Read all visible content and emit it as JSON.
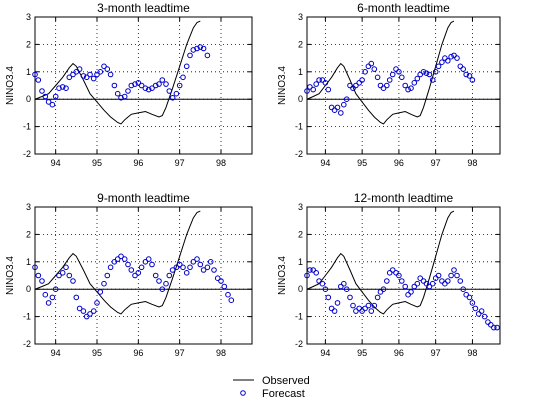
{
  "legend": {
    "observed": "Observed",
    "forecast": "Forecast"
  },
  "colors": {
    "observed": "#000000",
    "forecast": "#0000cc",
    "grid": "#000000",
    "axes": "#000000",
    "zero_line": "#000000"
  },
  "chart_data": [
    {
      "type": "line",
      "title": "3-month leadtime",
      "ylabel": "NINO3.4",
      "xlabel": "",
      "xlim": [
        1993.5,
        1998.75
      ],
      "ylim": [
        -2,
        3
      ],
      "xticks": [
        1994,
        1995,
        1996,
        1997,
        1998
      ],
      "xtick_labels": [
        "94",
        "95",
        "96",
        "97",
        "98"
      ],
      "yticks": [
        -2,
        -1,
        0,
        1,
        2,
        3
      ],
      "ytick_labels": [
        "-2",
        "-1",
        "0",
        "1",
        "2",
        "3"
      ],
      "grid": true,
      "zero_line": true,
      "series": [
        {
          "name": "Observed",
          "style": "line",
          "x": [
            1993.5,
            1993.67,
            1993.83,
            1994.0,
            1994.17,
            1994.33,
            1994.42,
            1994.5,
            1994.67,
            1994.83,
            1995.0,
            1995.17,
            1995.33,
            1995.5,
            1995.58,
            1995.67,
            1995.83,
            1996.0,
            1996.17,
            1996.33,
            1996.5,
            1996.58,
            1996.67,
            1996.83,
            1997.0,
            1997.17,
            1997.33,
            1997.42,
            1997.5
          ],
          "y": [
            0.0,
            0.1,
            0.2,
            0.5,
            0.8,
            1.15,
            1.3,
            1.2,
            0.7,
            0.2,
            -0.1,
            -0.4,
            -0.65,
            -0.85,
            -0.9,
            -0.75,
            -0.55,
            -0.5,
            -0.45,
            -0.55,
            -0.65,
            -0.6,
            -0.3,
            0.4,
            1.2,
            2.0,
            2.6,
            2.8,
            2.85
          ]
        },
        {
          "name": "Forecast",
          "style": "markers",
          "x": [
            1993.5,
            1993.58,
            1993.67,
            1993.75,
            1993.83,
            1993.92,
            1994.0,
            1994.08,
            1994.17,
            1994.25,
            1994.33,
            1994.42,
            1994.5,
            1994.58,
            1994.67,
            1994.75,
            1994.83,
            1994.92,
            1995.0,
            1995.08,
            1995.17,
            1995.25,
            1995.33,
            1995.42,
            1995.5,
            1995.58,
            1995.67,
            1995.75,
            1995.83,
            1995.92,
            1996.0,
            1996.08,
            1996.17,
            1996.25,
            1996.33,
            1996.42,
            1996.5,
            1996.58,
            1996.67,
            1996.75,
            1996.83,
            1996.92,
            1997.0,
            1997.08,
            1997.17,
            1997.25,
            1997.33,
            1997.42,
            1997.5,
            1997.58,
            1997.67
          ],
          "y": [
            0.9,
            0.7,
            0.3,
            0.1,
            -0.1,
            -0.2,
            0.1,
            0.4,
            0.45,
            0.4,
            0.8,
            0.9,
            1.0,
            1.1,
            0.85,
            0.8,
            0.9,
            0.75,
            0.9,
            1.0,
            1.2,
            1.1,
            0.9,
            0.5,
            0.2,
            0.05,
            0.1,
            0.3,
            0.5,
            0.55,
            0.6,
            0.5,
            0.4,
            0.35,
            0.4,
            0.5,
            0.55,
            0.7,
            0.55,
            0.3,
            0.05,
            0.2,
            0.5,
            0.8,
            1.2,
            1.6,
            1.8,
            1.85,
            1.9,
            1.85,
            1.6
          ]
        }
      ]
    },
    {
      "type": "line",
      "title": "6-month leadtime",
      "ylabel": "NINO3.4",
      "xlabel": "",
      "xlim": [
        1993.5,
        1998.75
      ],
      "ylim": [
        -2,
        3
      ],
      "xticks": [
        1994,
        1995,
        1996,
        1997,
        1998
      ],
      "xtick_labels": [
        "94",
        "95",
        "96",
        "97",
        "98"
      ],
      "yticks": [
        -2,
        -1,
        0,
        1,
        2,
        3
      ],
      "ytick_labels": [
        "-2",
        "-1",
        "0",
        "1",
        "2",
        "3"
      ],
      "grid": true,
      "zero_line": true,
      "series": [
        {
          "name": "Observed",
          "style": "line",
          "x": [
            1993.5,
            1993.67,
            1993.83,
            1994.0,
            1994.17,
            1994.33,
            1994.42,
            1994.5,
            1994.67,
            1994.83,
            1995.0,
            1995.17,
            1995.33,
            1995.5,
            1995.58,
            1995.67,
            1995.83,
            1996.0,
            1996.17,
            1996.33,
            1996.5,
            1996.58,
            1996.67,
            1996.83,
            1997.0,
            1997.17,
            1997.33,
            1997.42,
            1997.5
          ],
          "y": [
            0.0,
            0.1,
            0.2,
            0.5,
            0.8,
            1.15,
            1.3,
            1.2,
            0.7,
            0.2,
            -0.1,
            -0.4,
            -0.65,
            -0.85,
            -0.9,
            -0.75,
            -0.55,
            -0.5,
            -0.45,
            -0.55,
            -0.65,
            -0.6,
            -0.3,
            0.4,
            1.2,
            2.0,
            2.6,
            2.8,
            2.85
          ]
        },
        {
          "name": "Forecast",
          "style": "markers",
          "x": [
            1993.5,
            1993.58,
            1993.67,
            1993.75,
            1993.83,
            1993.92,
            1994.0,
            1994.08,
            1994.17,
            1994.25,
            1994.33,
            1994.42,
            1994.5,
            1994.58,
            1994.67,
            1994.75,
            1994.83,
            1994.92,
            1995.0,
            1995.08,
            1995.17,
            1995.25,
            1995.33,
            1995.42,
            1995.5,
            1995.58,
            1995.67,
            1995.75,
            1995.83,
            1995.92,
            1996.0,
            1996.08,
            1996.17,
            1996.25,
            1996.33,
            1996.42,
            1996.5,
            1996.58,
            1996.67,
            1996.75,
            1996.83,
            1996.92,
            1997.0,
            1997.08,
            1997.17,
            1997.25,
            1997.33,
            1997.42,
            1997.5,
            1997.58,
            1997.67,
            1997.75,
            1997.83,
            1997.92,
            1998.0
          ],
          "y": [
            0.3,
            0.45,
            0.35,
            0.55,
            0.7,
            0.7,
            0.6,
            0.35,
            -0.3,
            -0.4,
            -0.3,
            -0.5,
            -0.2,
            0.0,
            0.5,
            0.4,
            0.5,
            0.6,
            0.7,
            1.0,
            1.2,
            1.3,
            1.1,
            0.8,
            0.5,
            0.4,
            0.5,
            0.7,
            0.9,
            1.1,
            1.0,
            0.8,
            0.5,
            0.35,
            0.4,
            0.6,
            0.75,
            0.9,
            1.0,
            0.95,
            0.9,
            0.7,
            1.0,
            1.2,
            1.35,
            1.5,
            1.4,
            1.55,
            1.6,
            1.5,
            1.2,
            1.1,
            0.9,
            0.85,
            0.7
          ]
        }
      ]
    },
    {
      "type": "line",
      "title": "9-month leadtime",
      "ylabel": "NINO3.4",
      "xlabel": "",
      "xlim": [
        1993.5,
        1998.75
      ],
      "ylim": [
        -2,
        3
      ],
      "xticks": [
        1994,
        1995,
        1996,
        1997,
        1998
      ],
      "xtick_labels": [
        "94",
        "95",
        "96",
        "97",
        "98"
      ],
      "yticks": [
        -2,
        -1,
        0,
        1,
        2,
        3
      ],
      "ytick_labels": [
        "-2",
        "-1",
        "0",
        "1",
        "2",
        "3"
      ],
      "grid": true,
      "zero_line": true,
      "series": [
        {
          "name": "Observed",
          "style": "line",
          "x": [
            1993.5,
            1993.67,
            1993.83,
            1994.0,
            1994.17,
            1994.33,
            1994.42,
            1994.5,
            1994.67,
            1994.83,
            1995.0,
            1995.17,
            1995.33,
            1995.5,
            1995.58,
            1995.67,
            1995.83,
            1996.0,
            1996.17,
            1996.33,
            1996.5,
            1996.58,
            1996.67,
            1996.83,
            1997.0,
            1997.17,
            1997.33,
            1997.42,
            1997.5
          ],
          "y": [
            0.0,
            0.1,
            0.2,
            0.5,
            0.8,
            1.15,
            1.3,
            1.2,
            0.7,
            0.2,
            -0.1,
            -0.4,
            -0.65,
            -0.85,
            -0.9,
            -0.75,
            -0.55,
            -0.5,
            -0.45,
            -0.55,
            -0.65,
            -0.6,
            -0.3,
            0.4,
            1.2,
            2.0,
            2.6,
            2.8,
            2.85
          ]
        },
        {
          "name": "Forecast",
          "style": "markers",
          "x": [
            1993.5,
            1993.58,
            1993.67,
            1993.75,
            1993.83,
            1993.92,
            1994.0,
            1994.08,
            1994.17,
            1994.25,
            1994.33,
            1994.42,
            1994.5,
            1994.58,
            1994.67,
            1994.75,
            1994.83,
            1994.92,
            1995.0,
            1995.08,
            1995.17,
            1995.25,
            1995.33,
            1995.42,
            1995.5,
            1995.58,
            1995.67,
            1995.75,
            1995.83,
            1995.92,
            1996.0,
            1996.08,
            1996.17,
            1996.25,
            1996.33,
            1996.42,
            1996.5,
            1996.58,
            1996.67,
            1996.75,
            1996.83,
            1996.92,
            1997.0,
            1997.08,
            1997.17,
            1997.25,
            1997.33,
            1997.42,
            1997.5,
            1997.58,
            1997.67,
            1997.75,
            1997.83,
            1997.92,
            1998.0,
            1998.08,
            1998.17,
            1998.25
          ],
          "y": [
            0.8,
            0.5,
            0.3,
            -0.2,
            -0.5,
            -0.3,
            0.0,
            0.5,
            0.6,
            0.8,
            0.5,
            0.3,
            -0.3,
            -0.7,
            -0.8,
            -1.0,
            -0.9,
            -0.8,
            -0.5,
            -0.1,
            0.2,
            0.5,
            0.8,
            1.0,
            1.1,
            1.2,
            1.1,
            0.9,
            0.7,
            0.5,
            0.6,
            0.8,
            1.0,
            1.1,
            0.9,
            0.5,
            0.3,
            0.0,
            0.2,
            0.5,
            0.7,
            0.8,
            0.9,
            0.8,
            0.6,
            0.8,
            1.0,
            1.1,
            0.9,
            0.7,
            0.8,
            1.0,
            0.7,
            0.4,
            0.3,
            0.1,
            -0.2,
            -0.4
          ]
        }
      ]
    },
    {
      "type": "line",
      "title": "12-month leadtime",
      "ylabel": "NINO3.4",
      "xlabel": "",
      "xlim": [
        1993.5,
        1998.75
      ],
      "ylim": [
        -2,
        3
      ],
      "xticks": [
        1994,
        1995,
        1996,
        1997,
        1998
      ],
      "xtick_labels": [
        "94",
        "95",
        "96",
        "97",
        "98"
      ],
      "yticks": [
        -2,
        -1,
        0,
        1,
        2,
        3
      ],
      "ytick_labels": [
        "-2",
        "-1",
        "0",
        "1",
        "2",
        "3"
      ],
      "grid": true,
      "zero_line": true,
      "series": [
        {
          "name": "Observed",
          "style": "line",
          "x": [
            1993.5,
            1993.67,
            1993.83,
            1994.0,
            1994.17,
            1994.33,
            1994.42,
            1994.5,
            1994.67,
            1994.83,
            1995.0,
            1995.17,
            1995.33,
            1995.5,
            1995.58,
            1995.67,
            1995.83,
            1996.0,
            1996.17,
            1996.33,
            1996.5,
            1996.58,
            1996.67,
            1996.83,
            1997.0,
            1997.17,
            1997.33,
            1997.42,
            1997.5
          ],
          "y": [
            0.0,
            0.1,
            0.2,
            0.5,
            0.8,
            1.15,
            1.3,
            1.2,
            0.7,
            0.2,
            -0.1,
            -0.4,
            -0.65,
            -0.85,
            -0.9,
            -0.75,
            -0.55,
            -0.5,
            -0.45,
            -0.55,
            -0.65,
            -0.6,
            -0.3,
            0.4,
            1.2,
            2.0,
            2.6,
            2.8,
            2.85
          ]
        },
        {
          "name": "Forecast",
          "style": "markers",
          "x": [
            1993.5,
            1993.58,
            1993.67,
            1993.75,
            1993.83,
            1993.92,
            1994.0,
            1994.08,
            1994.17,
            1994.25,
            1994.33,
            1994.42,
            1994.5,
            1994.58,
            1994.67,
            1994.75,
            1994.83,
            1994.92,
            1995.0,
            1995.08,
            1995.17,
            1995.25,
            1995.33,
            1995.42,
            1995.5,
            1995.58,
            1995.67,
            1995.75,
            1995.83,
            1995.92,
            1996.0,
            1996.08,
            1996.17,
            1996.25,
            1996.33,
            1996.42,
            1996.5,
            1996.58,
            1996.67,
            1996.75,
            1996.83,
            1996.92,
            1997.0,
            1997.08,
            1997.17,
            1997.25,
            1997.33,
            1997.42,
            1997.5,
            1997.58,
            1997.67,
            1997.75,
            1997.83,
            1997.92,
            1998.0,
            1998.08,
            1998.17,
            1998.25,
            1998.33,
            1998.42,
            1998.5,
            1998.58,
            1998.67
          ],
          "y": [
            0.5,
            0.7,
            0.7,
            0.6,
            0.3,
            0.2,
            0.0,
            -0.3,
            -0.7,
            -0.8,
            -0.5,
            0.1,
            0.2,
            0.0,
            -0.3,
            -0.6,
            -0.8,
            -0.7,
            -0.8,
            -0.7,
            -0.6,
            -0.8,
            -0.6,
            -0.3,
            -0.1,
            0.0,
            0.3,
            0.6,
            0.7,
            0.6,
            0.5,
            0.3,
            0.1,
            -0.2,
            -0.1,
            0.1,
            0.2,
            0.4,
            0.3,
            0.2,
            0.1,
            0.2,
            0.4,
            0.5,
            0.3,
            0.2,
            0.3,
            0.5,
            0.7,
            0.5,
            0.3,
            0.0,
            -0.2,
            -0.3,
            -0.5,
            -0.7,
            -0.9,
            -0.8,
            -1.0,
            -1.2,
            -1.3,
            -1.4,
            -1.4
          ]
        }
      ]
    }
  ]
}
